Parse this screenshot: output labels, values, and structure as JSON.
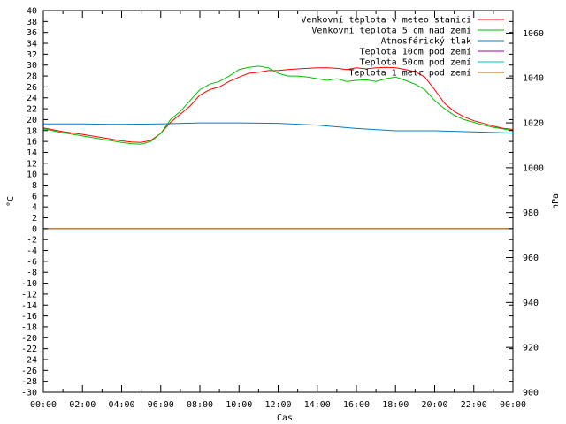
{
  "chart_data": {
    "type": "line",
    "xlabel": "Čas",
    "ylabel_left": "°C",
    "ylabel_right": "hPa",
    "xlim": [
      0,
      24
    ],
    "ylim_left": [
      -30,
      40
    ],
    "ylim_right": [
      900,
      1070
    ],
    "grid": false,
    "legend_position": "top-right",
    "x_ticks": [
      "00:00",
      "02:00",
      "04:00",
      "06:00",
      "08:00",
      "10:00",
      "12:00",
      "14:00",
      "16:00",
      "18:00",
      "20:00",
      "22:00",
      "00:00"
    ],
    "y_ticks_left": [
      -30,
      -28,
      -26,
      -24,
      -22,
      -20,
      -18,
      -16,
      -14,
      -12,
      -10,
      -8,
      -6,
      -4,
      -2,
      0,
      2,
      4,
      6,
      8,
      10,
      12,
      14,
      16,
      18,
      20,
      22,
      24,
      26,
      28,
      30,
      32,
      34,
      36,
      38,
      40
    ],
    "y_ticks_right": [
      900,
      920,
      940,
      960,
      980,
      1000,
      1020,
      1040,
      1060
    ],
    "series": [
      {
        "name": "Venkovní teplota v meteo stanici",
        "color": "#ff0000",
        "axis": "left",
        "x": [
          0,
          1,
          2,
          3,
          4,
          4.5,
          5,
          5.5,
          6,
          6.5,
          7,
          7.5,
          8,
          8.5,
          9,
          9.5,
          10,
          10.5,
          11,
          11.5,
          12,
          12.5,
          13,
          13.5,
          14,
          14.5,
          15,
          15.5,
          16,
          16.5,
          17,
          17.5,
          18,
          18.5,
          19,
          19.5,
          20,
          20.5,
          21,
          21.5,
          22,
          22.5,
          23,
          23.5,
          24
        ],
        "y": [
          18.5,
          17.8,
          17.3,
          16.7,
          16.1,
          15.9,
          15.8,
          16.2,
          17.5,
          19.5,
          21.0,
          22.5,
          24.5,
          25.5,
          26.0,
          27.0,
          27.8,
          28.5,
          28.7,
          29.0,
          29.0,
          29.2,
          29.3,
          29.4,
          29.5,
          29.5,
          29.4,
          29.2,
          29.5,
          29.3,
          29.5,
          29.6,
          29.5,
          29.2,
          28.8,
          27.8,
          25.5,
          23.0,
          21.5,
          20.5,
          19.8,
          19.3,
          18.8,
          18.4,
          18.2
        ]
      },
      {
        "name": "Venkovní teplota 5 cm nad zemí",
        "color": "#00c000",
        "axis": "left",
        "x": [
          0,
          1,
          2,
          3,
          4,
          4.5,
          5,
          5.5,
          6,
          6.5,
          7,
          7.5,
          8,
          8.5,
          9,
          9.5,
          10,
          10.5,
          11,
          11.5,
          12,
          12.5,
          13,
          13.5,
          14,
          14.5,
          15,
          15.5,
          16,
          16.5,
          17,
          17.5,
          18,
          18.5,
          19,
          19.5,
          20,
          20.5,
          21,
          21.5,
          22,
          22.5,
          23,
          23.5,
          24
        ],
        "y": [
          18.3,
          17.6,
          17.0,
          16.4,
          15.8,
          15.6,
          15.5,
          16.0,
          17.5,
          20.0,
          21.5,
          23.5,
          25.5,
          26.5,
          27.0,
          28.0,
          29.2,
          29.6,
          29.8,
          29.5,
          28.5,
          28.0,
          28.0,
          27.8,
          27.5,
          27.2,
          27.5,
          27.0,
          27.2,
          27.3,
          27.0,
          27.5,
          27.8,
          27.2,
          26.5,
          25.5,
          23.5,
          22.0,
          20.8,
          20.0,
          19.5,
          19.0,
          18.6,
          18.3,
          18.0
        ]
      },
      {
        "name": "Atmosférický tlak",
        "color": "#0080c0",
        "axis": "right",
        "x": [
          0,
          2,
          4,
          6,
          8,
          10,
          12,
          14,
          16,
          18,
          20,
          22,
          24
        ],
        "y": [
          1019.5,
          1019.5,
          1019.3,
          1019.5,
          1020.0,
          1020.0,
          1019.8,
          1019.0,
          1017.5,
          1016.5,
          1016.5,
          1016.0,
          1015.5
        ]
      },
      {
        "name": "Teplota 10cm pod zemí",
        "color": "#a000a0",
        "axis": "left",
        "x": [
          0,
          24
        ],
        "y": [
          0,
          0
        ]
      },
      {
        "name": "Teplota 50cm pod zemí",
        "color": "#00c0c0",
        "axis": "left",
        "x": [
          0,
          24
        ],
        "y": [
          0,
          0
        ]
      },
      {
        "name": "Teplota 1 metr pod zemí",
        "color": "#c06000",
        "axis": "left",
        "x": [
          0,
          24
        ],
        "y": [
          0,
          0
        ]
      }
    ]
  }
}
